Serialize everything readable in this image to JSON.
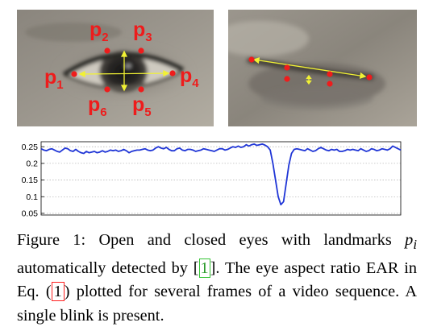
{
  "colors": {
    "landmark": "#ee1c1c",
    "axis_line": "#f1f134",
    "curve": "#1f35d6",
    "cite_box": "#35c435",
    "eq_box": "#ff2020"
  },
  "open_eye": {
    "landmarks": [
      {
        "name": "p",
        "sub": "1"
      },
      {
        "name": "p",
        "sub": "2"
      },
      {
        "name": "p",
        "sub": "3"
      },
      {
        "name": "p",
        "sub": "4"
      },
      {
        "name": "p",
        "sub": "5"
      },
      {
        "name": "p",
        "sub": "6"
      }
    ]
  },
  "chart_data": {
    "type": "line",
    "title": "",
    "xlabel": "",
    "ylabel": "",
    "yticks": [
      "0.25",
      "0.2",
      "0.15",
      "0.1",
      "0.05"
    ],
    "ylim": [
      0.045,
      0.265
    ],
    "grid": "horizontal dotted",
    "series": [
      {
        "values": [
          0.244,
          0.24,
          0.238,
          0.242,
          0.244,
          0.24,
          0.236,
          0.234,
          0.24,
          0.246,
          0.244,
          0.238,
          0.236,
          0.242,
          0.236,
          0.232,
          0.23,
          0.236,
          0.232,
          0.234,
          0.236,
          0.232,
          0.234,
          0.238,
          0.234,
          0.236,
          0.24,
          0.238,
          0.24,
          0.236,
          0.238,
          0.242,
          0.238,
          0.232,
          0.236,
          0.238,
          0.24,
          0.24,
          0.242,
          0.244,
          0.24,
          0.238,
          0.24,
          0.246,
          0.25,
          0.246,
          0.244,
          0.248,
          0.242,
          0.238,
          0.238,
          0.244,
          0.246,
          0.24,
          0.238,
          0.242,
          0.242,
          0.24,
          0.236,
          0.238,
          0.24,
          0.244,
          0.242,
          0.24,
          0.238,
          0.236,
          0.24,
          0.244,
          0.244,
          0.24,
          0.242,
          0.246,
          0.25,
          0.248,
          0.252,
          0.248,
          0.25,
          0.256,
          0.252,
          0.256,
          0.258,
          0.254,
          0.256,
          0.258,
          0.255,
          0.25,
          0.24,
          0.2,
          0.15,
          0.1,
          0.076,
          0.085,
          0.14,
          0.195,
          0.23,
          0.242,
          0.244,
          0.242,
          0.24,
          0.238,
          0.244,
          0.24,
          0.236,
          0.238,
          0.244,
          0.248,
          0.244,
          0.24,
          0.238,
          0.242,
          0.24,
          0.242,
          0.236,
          0.236,
          0.238,
          0.242,
          0.24,
          0.242,
          0.24,
          0.238,
          0.244,
          0.24,
          0.236,
          0.238,
          0.244,
          0.242,
          0.238,
          0.24,
          0.244,
          0.242,
          0.24,
          0.244,
          0.252,
          0.248,
          0.244,
          0.24
        ]
      }
    ]
  },
  "caption": {
    "figure_label": "Figure 1:",
    "text_a": " Open and closed eyes with landmarks ",
    "math_var": "p",
    "math_sub": "i",
    "text_b": " automatically detected by [",
    "cite_ref": "1",
    "text_c": "]. The eye aspect ratio EAR in Eq. (",
    "eq_ref": "1",
    "text_d": ") plotted for several frames of a video sequence. A single blink is present."
  }
}
